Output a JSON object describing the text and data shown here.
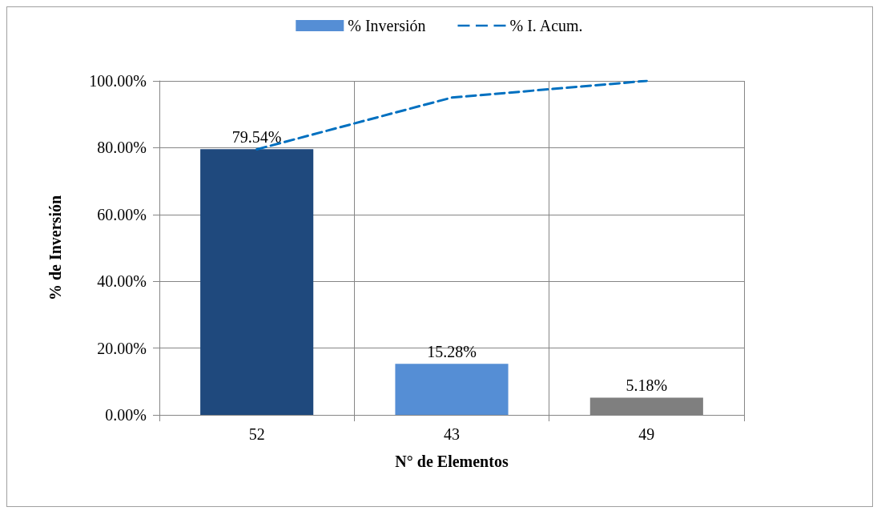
{
  "chart_data": {
    "type": "bar",
    "xlabel": "N° de Elementos",
    "ylabel": "% de Inversión",
    "categories": [
      "52",
      "43",
      "49"
    ],
    "series": [
      {
        "name": "% Inversión",
        "color": "#558ed5",
        "colors": [
          "#1f497d",
          "#558ed5",
          "#7f7f7f"
        ],
        "values": [
          79.54,
          15.28,
          5.18
        ],
        "value_labels": [
          "79.54%",
          "15.28%",
          "5.18%"
        ]
      },
      {
        "name": "% I. Acum.",
        "type": "line",
        "color": "#0070c0",
        "line_style": "dashed",
        "marker": "none",
        "values": [
          79.5,
          95,
          100
        ]
      }
    ],
    "ylim": [
      0,
      100
    ],
    "yticks": [
      {
        "value": 0,
        "label": "0.00%"
      },
      {
        "value": 20,
        "label": "20.00%"
      },
      {
        "value": 40,
        "label": "40.00%"
      },
      {
        "value": 60,
        "label": "60.00%"
      },
      {
        "value": 80,
        "label": "80.00%"
      },
      {
        "value": 100,
        "label": "100.00%"
      }
    ],
    "grid": true,
    "legend": "top"
  }
}
